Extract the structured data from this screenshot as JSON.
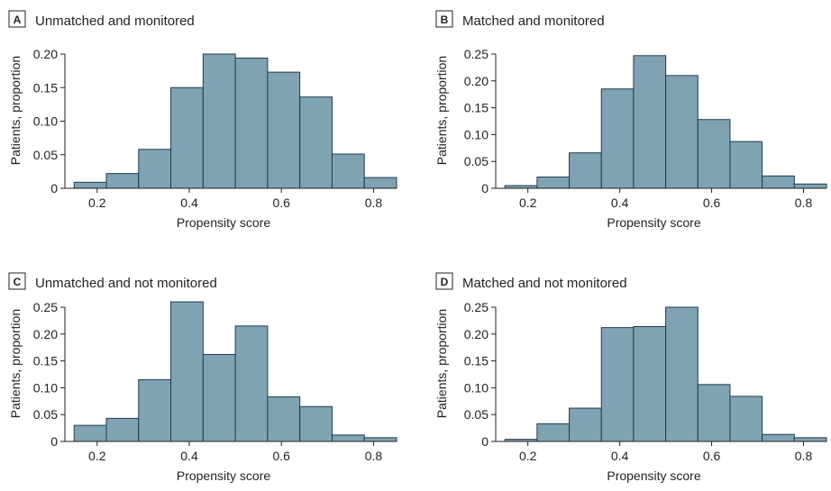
{
  "colors": {
    "bar_fill": "#7fa3b3",
    "bar_stroke": "#1f3b4d",
    "axis": "#231f20"
  },
  "chart_data": [
    {
      "type": "bar",
      "panel": "A",
      "title": "Unmatched and monitored",
      "xlabel": "Propensity score",
      "ylabel": "Patients, proportion",
      "bin_edges": [
        0.15,
        0.22,
        0.29,
        0.36,
        0.43,
        0.5,
        0.57,
        0.64,
        0.71,
        0.78,
        0.85
      ],
      "values": [
        0.009,
        0.022,
        0.058,
        0.15,
        0.2,
        0.194,
        0.173,
        0.136,
        0.051,
        0.016
      ],
      "ylim": [
        0,
        0.2
      ],
      "yticks": [
        0,
        0.05,
        0.1,
        0.15,
        0.2
      ],
      "ytick_labels": [
        "0",
        "0.05",
        "0.10",
        "0.15",
        "0.20"
      ],
      "xlim": [
        0.13,
        0.85
      ],
      "xticks": [
        0.2,
        0.4,
        0.6,
        0.8
      ],
      "xtick_labels": [
        "0.2",
        "0.4",
        "0.6",
        "0.8"
      ]
    },
    {
      "type": "bar",
      "panel": "B",
      "title": "Matched and monitored",
      "xlabel": "Propensity score",
      "ylabel": "Patients, proportion",
      "bin_edges": [
        0.15,
        0.22,
        0.29,
        0.36,
        0.43,
        0.5,
        0.57,
        0.64,
        0.71,
        0.78,
        0.85
      ],
      "values": [
        0.005,
        0.021,
        0.066,
        0.185,
        0.247,
        0.21,
        0.128,
        0.087,
        0.023,
        0.008
      ],
      "ylim": [
        0,
        0.25
      ],
      "yticks": [
        0,
        0.05,
        0.1,
        0.15,
        0.2,
        0.25
      ],
      "ytick_labels": [
        "0",
        "0.05",
        "0.10",
        "0.15",
        "0.20",
        "0.25"
      ],
      "xlim": [
        0.13,
        0.85
      ],
      "xticks": [
        0.2,
        0.4,
        0.6,
        0.8
      ],
      "xtick_labels": [
        "0.2",
        "0.4",
        "0.6",
        "0.8"
      ]
    },
    {
      "type": "bar",
      "panel": "C",
      "title": "Unmatched and not monitored",
      "xlabel": "Propensity score",
      "ylabel": "Patients, proportion",
      "bin_edges": [
        0.15,
        0.22,
        0.29,
        0.36,
        0.43,
        0.5,
        0.57,
        0.64,
        0.71,
        0.78,
        0.85
      ],
      "values": [
        0.03,
        0.043,
        0.115,
        0.26,
        0.162,
        0.215,
        0.083,
        0.065,
        0.012,
        0.007
      ],
      "ylim": [
        0,
        0.25
      ],
      "yticks": [
        0,
        0.05,
        0.1,
        0.15,
        0.2,
        0.25
      ],
      "ytick_labels": [
        "0",
        "0.05",
        "0.10",
        "0.15",
        "0.20",
        "0.25"
      ],
      "xlim": [
        0.13,
        0.85
      ],
      "xticks": [
        0.2,
        0.4,
        0.6,
        0.8
      ],
      "xtick_labels": [
        "0.2",
        "0.4",
        "0.6",
        "0.8"
      ]
    },
    {
      "type": "bar",
      "panel": "D",
      "title": "Matched and not monitored",
      "xlabel": "Propensity score",
      "ylabel": "Patients, proportion",
      "bin_edges": [
        0.15,
        0.22,
        0.29,
        0.36,
        0.43,
        0.5,
        0.57,
        0.64,
        0.71,
        0.78,
        0.85
      ],
      "values": [
        0.004,
        0.033,
        0.062,
        0.212,
        0.214,
        0.25,
        0.106,
        0.084,
        0.013,
        0.007
      ],
      "ylim": [
        0,
        0.25
      ],
      "yticks": [
        0,
        0.05,
        0.1,
        0.15,
        0.2,
        0.25
      ],
      "ytick_labels": [
        "0",
        "0.05",
        "0.10",
        "0.15",
        "0.20",
        "0.25"
      ],
      "xlim": [
        0.13,
        0.85
      ],
      "xticks": [
        0.2,
        0.4,
        0.6,
        0.8
      ],
      "xtick_labels": [
        "0.2",
        "0.4",
        "0.6",
        "0.8"
      ]
    }
  ]
}
